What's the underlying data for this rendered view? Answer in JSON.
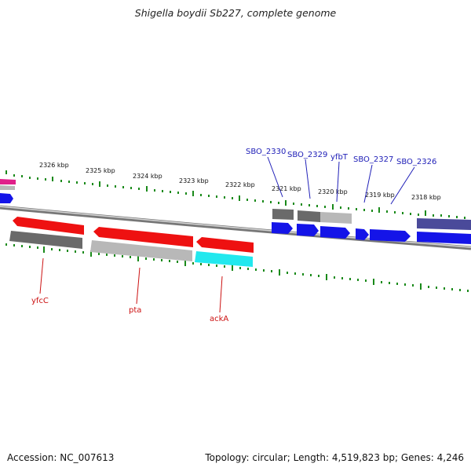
{
  "title": "Shigella boydii Sb227, complete genome",
  "footer": {
    "accession": "Accession: NC_007613",
    "summary": "Topology: circular; Length: 4,519,823 bp; Genes: 4,246"
  },
  "kbp_labels": [
    "2326 kbp",
    "2325 kbp",
    "2324 kbp",
    "2323 kbp",
    "2322 kbp",
    "2321 kbp",
    "2320 kbp",
    "2319 kbp",
    "2318 kbp"
  ],
  "genes_top": [
    "SBO_2330",
    "SBO_2329",
    "yfbT",
    "SBO_2327",
    "SBO_2326"
  ],
  "genes_bottom": [
    "yfcC",
    "pta",
    "ackA"
  ],
  "colors": {
    "backbone": "#8a8a8a",
    "tick": "#1a8a1a",
    "red": "#ee1111",
    "gray_dark": "#6a6a6a",
    "gray_light": "#b8b8b8",
    "cyan": "#22e8ee",
    "blue": "#1414e8",
    "navy": "#4a4a9a",
    "magenta": "#e0208a",
    "label_blue": "#2020b8",
    "label_red": "#cc1111"
  }
}
